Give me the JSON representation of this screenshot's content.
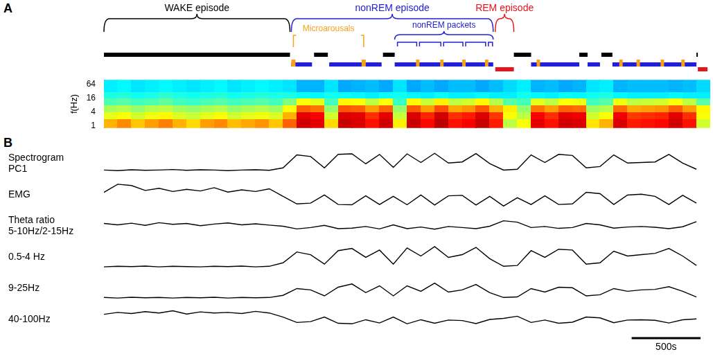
{
  "chart_data": [
    {
      "panel": "A",
      "type": "hypnogram",
      "xlim": [
        0,
        4400
      ],
      "tick_labels": false,
      "annotations": {
        "episodes": [
          {
            "text": "WAKE episode",
            "color": "#000000",
            "start": 0,
            "end": 1350
          },
          {
            "text": "nonREM episode",
            "color": "#2020d8",
            "start": 1360,
            "end": 2825
          },
          {
            "text": "REM episode",
            "color": "#e8141c",
            "start": 2840,
            "end": 2975
          }
        ],
        "microarousals": {
          "text": "Microarousals",
          "color": "#f5a31a",
          "pointers": [
            1375,
            1885
          ]
        },
        "packets": {
          "text": "nonREM packets",
          "color": "#2020d8",
          "start": 2110,
          "end": 2825,
          "intervals": [
            [
              2125,
              2275
            ],
            [
              2285,
              2450
            ],
            [
              2460,
              2610
            ],
            [
              2620,
              2775
            ],
            [
              2785,
              2825
            ]
          ]
        }
      },
      "series": [
        {
          "color": "#000000",
          "intervals": [
            [
              0,
              1350
            ],
            [
              1525,
              1625
            ],
            [
              2025,
              2110
            ],
            [
              2975,
              3100
            ],
            [
              3450,
              3510
            ],
            [
              3610,
              3690
            ],
            [
              4300,
              4310
            ]
          ]
        },
        {
          "color": "#2020d8",
          "intervals": [
            [
              1360,
              1510
            ],
            [
              1635,
              2015
            ],
            [
              2110,
              2825
            ],
            [
              3100,
              3450
            ],
            [
              3510,
              3600
            ],
            [
              3690,
              4300
            ]
          ]
        },
        {
          "color": "#e8141c",
          "intervals": [
            [
              2840,
              2975
            ],
            [
              4310,
              4380
            ]
          ]
        },
        {
          "color": "#f5a31a",
          "intervals": [
            [
              1360,
              1390
            ],
            [
              1870,
              1900
            ],
            [
              2265,
              2290
            ],
            [
              2440,
              2465
            ],
            [
              2600,
              2625
            ],
            [
              2765,
              2790
            ],
            [
              3140,
              3165
            ],
            [
              3740,
              3765
            ],
            [
              3865,
              3890
            ],
            [
              4040,
              4065
            ],
            [
              4190,
              4215
            ]
          ]
        }
      ]
    },
    {
      "panel": "A",
      "type": "heatmap",
      "y_label": "f(Hz)",
      "log": "y",
      "tick_labels": "y",
      "xlim": [
        0,
        4400
      ],
      "ylim": [
        0.8,
        100
      ],
      "yticks": [
        1,
        4,
        16,
        64
      ],
      "x_bins": [
        0,
        100,
        200,
        300,
        400,
        500,
        600,
        700,
        800,
        900,
        1000,
        1100,
        1200,
        1300,
        1400,
        1500,
        1600,
        1700,
        1800,
        1900,
        2000,
        2100,
        2200,
        2300,
        2400,
        2500,
        2600,
        2700,
        2800,
        2900,
        3000,
        3100,
        3200,
        3300,
        3400,
        3500,
        3600,
        3700,
        3800,
        3900,
        4000,
        4100,
        4200,
        4300,
        4400
      ],
      "y_bins": [
        0.8,
        2,
        4,
        8,
        16,
        32,
        100
      ],
      "color_range": [
        0,
        1
      ],
      "values": [
        [
          0.7,
          0.74,
          0.68,
          0.72,
          0.75,
          0.7,
          0.66,
          0.72,
          0.74,
          0.69,
          0.71,
          0.73,
          0.68,
          0.78,
          0.92,
          0.9,
          0.66,
          0.93,
          0.91,
          0.86,
          0.92,
          0.64,
          0.93,
          0.87,
          0.94,
          0.86,
          0.88,
          0.93,
          0.85,
          0.56,
          0.62,
          0.9,
          0.86,
          0.92,
          0.91,
          0.65,
          0.7,
          0.91,
          0.85,
          0.86,
          0.87,
          0.92,
          0.86,
          0.58
        ],
        [
          0.6,
          0.62,
          0.58,
          0.61,
          0.63,
          0.59,
          0.57,
          0.6,
          0.62,
          0.58,
          0.6,
          0.61,
          0.59,
          0.7,
          0.9,
          0.88,
          0.58,
          0.91,
          0.9,
          0.83,
          0.9,
          0.57,
          0.91,
          0.84,
          0.92,
          0.83,
          0.85,
          0.91,
          0.82,
          0.62,
          0.56,
          0.88,
          0.83,
          0.9,
          0.89,
          0.58,
          0.62,
          0.89,
          0.82,
          0.83,
          0.84,
          0.9,
          0.83,
          0.62
        ],
        [
          0.54,
          0.55,
          0.52,
          0.55,
          0.56,
          0.53,
          0.52,
          0.54,
          0.55,
          0.52,
          0.54,
          0.55,
          0.53,
          0.62,
          0.78,
          0.76,
          0.52,
          0.79,
          0.78,
          0.72,
          0.78,
          0.52,
          0.79,
          0.72,
          0.8,
          0.71,
          0.73,
          0.79,
          0.7,
          0.64,
          0.52,
          0.76,
          0.72,
          0.78,
          0.77,
          0.53,
          0.55,
          0.77,
          0.71,
          0.72,
          0.73,
          0.78,
          0.72,
          0.63
        ],
        [
          0.45,
          0.46,
          0.44,
          0.45,
          0.47,
          0.44,
          0.43,
          0.45,
          0.46,
          0.44,
          0.45,
          0.46,
          0.44,
          0.5,
          0.62,
          0.6,
          0.44,
          0.63,
          0.62,
          0.56,
          0.62,
          0.43,
          0.63,
          0.57,
          0.64,
          0.56,
          0.58,
          0.63,
          0.55,
          0.46,
          0.44,
          0.6,
          0.56,
          0.62,
          0.61,
          0.44,
          0.46,
          0.61,
          0.56,
          0.57,
          0.58,
          0.62,
          0.56,
          0.46
        ],
        [
          0.4,
          0.41,
          0.39,
          0.4,
          0.42,
          0.4,
          0.39,
          0.4,
          0.41,
          0.39,
          0.4,
          0.41,
          0.4,
          0.4,
          0.38,
          0.37,
          0.39,
          0.38,
          0.37,
          0.36,
          0.38,
          0.39,
          0.37,
          0.36,
          0.38,
          0.36,
          0.36,
          0.37,
          0.36,
          0.36,
          0.39,
          0.37,
          0.36,
          0.38,
          0.37,
          0.39,
          0.4,
          0.37,
          0.36,
          0.36,
          0.36,
          0.37,
          0.36,
          0.36
        ],
        [
          0.36,
          0.37,
          0.35,
          0.36,
          0.37,
          0.36,
          0.35,
          0.36,
          0.37,
          0.35,
          0.36,
          0.37,
          0.36,
          0.35,
          0.3,
          0.3,
          0.35,
          0.29,
          0.3,
          0.31,
          0.29,
          0.35,
          0.29,
          0.31,
          0.29,
          0.31,
          0.31,
          0.29,
          0.31,
          0.34,
          0.36,
          0.3,
          0.31,
          0.29,
          0.3,
          0.35,
          0.36,
          0.3,
          0.31,
          0.31,
          0.31,
          0.3,
          0.31,
          0.34
        ]
      ]
    },
    {
      "panel": "B",
      "type": "line",
      "xlim": [
        0,
        4400
      ],
      "ylim": [
        0,
        1
      ],
      "tick_labels": false,
      "x": [
        0,
        100,
        200,
        300,
        400,
        500,
        600,
        700,
        800,
        900,
        1000,
        1100,
        1200,
        1300,
        1400,
        1500,
        1600,
        1700,
        1800,
        1900,
        2000,
        2100,
        2200,
        2300,
        2400,
        2500,
        2600,
        2700,
        2800,
        2900,
        3000,
        3100,
        3200,
        3300,
        3400,
        3500,
        3600,
        3700,
        3800,
        3900,
        4000,
        4100,
        4200,
        4300
      ],
      "scale_bar": {
        "value": 500,
        "label": "500s"
      },
      "series": [
        {
          "name": "Spectrogram\nPC1",
          "color": "#000000",
          "values": [
            0.22,
            0.2,
            0.23,
            0.21,
            0.22,
            0.24,
            0.21,
            0.23,
            0.22,
            0.2,
            0.22,
            0.23,
            0.21,
            0.3,
            0.78,
            0.72,
            0.3,
            0.8,
            0.82,
            0.45,
            0.8,
            0.32,
            0.82,
            0.5,
            0.84,
            0.48,
            0.52,
            0.83,
            0.46,
            0.22,
            0.25,
            0.78,
            0.5,
            0.8,
            0.76,
            0.3,
            0.35,
            0.78,
            0.48,
            0.5,
            0.52,
            0.8,
            0.48,
            0.25
          ]
        },
        {
          "name": "EMG",
          "color": "#000000",
          "values": [
            0.55,
            0.85,
            0.8,
            0.62,
            0.7,
            0.58,
            0.66,
            0.6,
            0.72,
            0.56,
            0.64,
            0.58,
            0.68,
            0.4,
            0.12,
            0.15,
            0.45,
            0.1,
            0.09,
            0.42,
            0.1,
            0.4,
            0.09,
            0.45,
            0.08,
            0.42,
            0.44,
            0.08,
            0.4,
            0.04,
            0.35,
            0.1,
            0.42,
            0.1,
            0.12,
            0.55,
            0.5,
            0.1,
            0.45,
            0.48,
            0.4,
            0.1,
            0.44,
            0.15
          ]
        },
        {
          "name": "Theta ratio\n5-10Hz/2-15Hz",
          "color": "#000000",
          "values": [
            0.55,
            0.5,
            0.56,
            0.48,
            0.58,
            0.52,
            0.55,
            0.47,
            0.53,
            0.57,
            0.5,
            0.54,
            0.49,
            0.45,
            0.35,
            0.4,
            0.48,
            0.36,
            0.38,
            0.44,
            0.35,
            0.5,
            0.36,
            0.42,
            0.34,
            0.44,
            0.4,
            0.36,
            0.45,
            0.65,
            0.6,
            0.4,
            0.44,
            0.37,
            0.4,
            0.55,
            0.5,
            0.38,
            0.42,
            0.44,
            0.41,
            0.36,
            0.43,
            0.62
          ]
        },
        {
          "name": "0.5-4 Hz",
          "color": "#000000",
          "values": [
            0.1,
            0.12,
            0.11,
            0.13,
            0.1,
            0.12,
            0.11,
            0.1,
            0.12,
            0.11,
            0.13,
            0.1,
            0.12,
            0.25,
            0.65,
            0.55,
            0.2,
            0.7,
            0.78,
            0.45,
            0.72,
            0.2,
            0.8,
            0.5,
            0.85,
            0.45,
            0.55,
            0.82,
            0.4,
            0.12,
            0.15,
            0.7,
            0.45,
            0.75,
            0.72,
            0.2,
            0.25,
            0.68,
            0.5,
            0.55,
            0.6,
            0.78,
            0.5,
            0.15
          ]
        },
        {
          "name": "9-25Hz",
          "color": "#000000",
          "values": [
            0.12,
            0.1,
            0.13,
            0.11,
            0.12,
            0.1,
            0.12,
            0.11,
            0.13,
            0.1,
            0.12,
            0.11,
            0.12,
            0.2,
            0.45,
            0.4,
            0.18,
            0.5,
            0.62,
            0.3,
            0.55,
            0.18,
            0.55,
            0.35,
            0.65,
            0.32,
            0.4,
            0.6,
            0.3,
            0.12,
            0.14,
            0.45,
            0.32,
            0.5,
            0.48,
            0.18,
            0.22,
            0.45,
            0.35,
            0.4,
            0.42,
            0.52,
            0.35,
            0.14
          ]
        },
        {
          "name": "40-100Hz",
          "color": "#000000",
          "values": [
            0.65,
            0.72,
            0.68,
            0.75,
            0.7,
            0.78,
            0.66,
            0.74,
            0.7,
            0.72,
            0.68,
            0.76,
            0.7,
            0.55,
            0.35,
            0.38,
            0.55,
            0.32,
            0.3,
            0.45,
            0.33,
            0.55,
            0.3,
            0.45,
            0.32,
            0.44,
            0.42,
            0.31,
            0.46,
            0.5,
            0.58,
            0.35,
            0.44,
            0.32,
            0.36,
            0.55,
            0.52,
            0.34,
            0.44,
            0.45,
            0.43,
            0.33,
            0.45,
            0.48
          ]
        }
      ]
    }
  ]
}
